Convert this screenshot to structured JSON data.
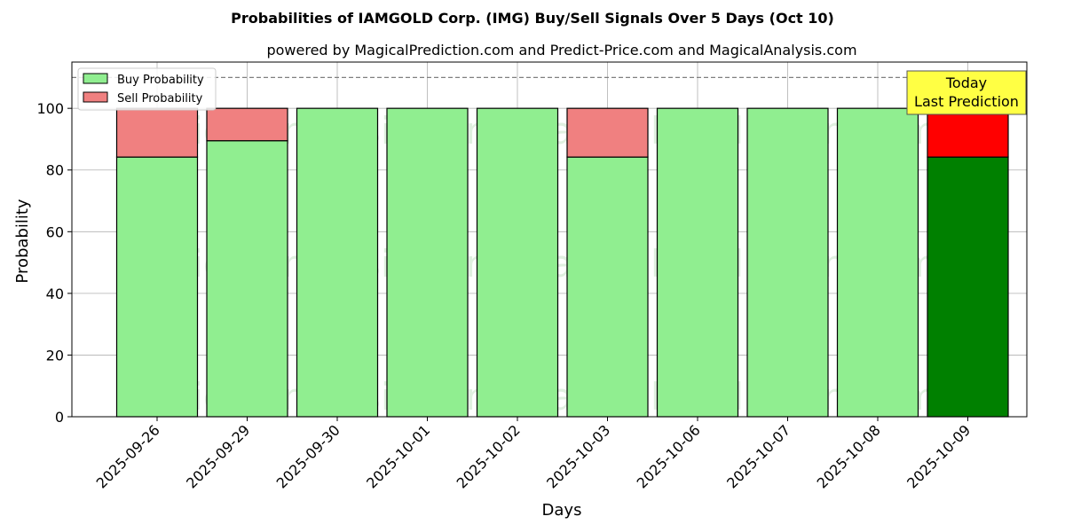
{
  "chart_data": {
    "type": "bar",
    "stacked": true,
    "title": "Probabilities of IAMGOLD Corp. (IMG) Buy/Sell Signals Over 5 Days (Oct 10)",
    "subtitle": "powered by MagicalPrediction.com and Predict-Price.com and MagicalAnalysis.com",
    "xlabel": "Days",
    "ylabel": "Probability",
    "ylim": [
      0,
      115
    ],
    "yticks": [
      0,
      20,
      40,
      60,
      80,
      100
    ],
    "reference_line": 110,
    "grid": true,
    "legend_position": "top-left",
    "categories": [
      "2025-09-26",
      "2025-09-29",
      "2025-09-30",
      "2025-10-01",
      "2025-10-02",
      "2025-10-03",
      "2025-10-06",
      "2025-10-07",
      "2025-10-08",
      "2025-10-09"
    ],
    "series": [
      {
        "name": "Buy Probability",
        "color": "#90ee90",
        "values": [
          84.2,
          89.5,
          100,
          100,
          100,
          84.2,
          100,
          100,
          100,
          84.2
        ]
      },
      {
        "name": "Sell Probability",
        "color": "#f08080",
        "values": [
          15.8,
          10.5,
          0,
          0,
          0,
          15.8,
          0,
          0,
          0,
          15.8
        ]
      }
    ],
    "highlight": {
      "index": 9,
      "buy_color": "#008000",
      "sell_color": "#ff0000"
    },
    "annotation": {
      "line1": "Today",
      "line2": "Last Prediction",
      "fill": "#ffff44"
    },
    "watermarks": [
      "MagicalAnalysis.com",
      "MagicalPrediction.com"
    ]
  }
}
